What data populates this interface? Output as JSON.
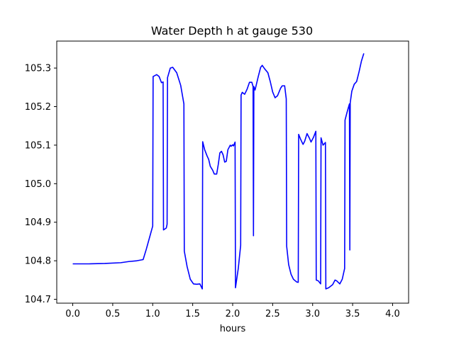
{
  "chart_data": {
    "type": "line",
    "title": "Water Depth h at gauge 530",
    "xlabel": "hours",
    "ylabel": "",
    "xlim": [
      -0.2,
      4.2
    ],
    "ylim": [
      104.69,
      105.37
    ],
    "xticks": [
      0.0,
      0.5,
      1.0,
      1.5,
      2.0,
      2.5,
      3.0,
      3.5,
      4.0
    ],
    "xtick_labels": [
      "0.0",
      "0.5",
      "1.0",
      "1.5",
      "2.0",
      "2.5",
      "3.0",
      "3.5",
      "4.0"
    ],
    "yticks": [
      104.7,
      104.8,
      104.9,
      105.0,
      105.1,
      105.2,
      105.3
    ],
    "ytick_labels": [
      "104.7",
      "104.8",
      "104.9",
      "105.0",
      "105.1",
      "105.2",
      "105.3"
    ],
    "grid": false,
    "series": [
      {
        "name": "",
        "color": "#0000ff",
        "points": [
          [
            0.0,
            104.792
          ],
          [
            0.2,
            104.792
          ],
          [
            0.4,
            104.793
          ],
          [
            0.6,
            104.795
          ],
          [
            0.7,
            104.798
          ],
          [
            0.8,
            104.8
          ],
          [
            0.88,
            104.803
          ],
          [
            0.92,
            104.83
          ],
          [
            0.96,
            104.86
          ],
          [
            1.0,
            104.89
          ],
          [
            1.005,
            105.278
          ],
          [
            1.05,
            105.283
          ],
          [
            1.08,
            105.278
          ],
          [
            1.11,
            105.262
          ],
          [
            1.13,
            105.264
          ],
          [
            1.135,
            104.88
          ],
          [
            1.17,
            104.885
          ],
          [
            1.18,
            104.895
          ],
          [
            1.185,
            105.275
          ],
          [
            1.22,
            105.3
          ],
          [
            1.25,
            105.302
          ],
          [
            1.3,
            105.288
          ],
          [
            1.35,
            105.255
          ],
          [
            1.39,
            105.207
          ],
          [
            1.395,
            104.825
          ],
          [
            1.43,
            104.785
          ],
          [
            1.47,
            104.752
          ],
          [
            1.51,
            104.74
          ],
          [
            1.55,
            104.739
          ],
          [
            1.59,
            104.74
          ],
          [
            1.62,
            104.727
          ],
          [
            1.625,
            105.109
          ],
          [
            1.65,
            105.088
          ],
          [
            1.68,
            105.072
          ],
          [
            1.7,
            105.063
          ],
          [
            1.72,
            105.045
          ],
          [
            1.75,
            105.035
          ],
          [
            1.77,
            105.025
          ],
          [
            1.8,
            105.025
          ],
          [
            1.82,
            105.05
          ],
          [
            1.84,
            105.08
          ],
          [
            1.86,
            105.084
          ],
          [
            1.88,
            105.075
          ],
          [
            1.9,
            105.056
          ],
          [
            1.92,
            105.058
          ],
          [
            1.94,
            105.088
          ],
          [
            1.97,
            105.1
          ],
          [
            1.98,
            105.097
          ],
          [
            2.0,
            105.101
          ],
          [
            2.01,
            105.098
          ],
          [
            2.03,
            105.108
          ],
          [
            2.035,
            104.73
          ],
          [
            2.07,
            104.78
          ],
          [
            2.1,
            104.84
          ],
          [
            2.105,
            105.23
          ],
          [
            2.12,
            105.237
          ],
          [
            2.15,
            105.232
          ],
          [
            2.18,
            105.245
          ],
          [
            2.21,
            105.263
          ],
          [
            2.24,
            105.263
          ],
          [
            2.255,
            105.252
          ],
          [
            2.26,
            104.865
          ],
          [
            2.265,
            105.252
          ],
          [
            2.28,
            105.243
          ],
          [
            2.32,
            105.278
          ],
          [
            2.35,
            105.302
          ],
          [
            2.37,
            105.307
          ],
          [
            2.4,
            105.298
          ],
          [
            2.44,
            105.288
          ],
          [
            2.47,
            105.265
          ],
          [
            2.5,
            105.238
          ],
          [
            2.53,
            105.223
          ],
          [
            2.56,
            105.228
          ],
          [
            2.6,
            105.248
          ],
          [
            2.62,
            105.254
          ],
          [
            2.65,
            105.254
          ],
          [
            2.67,
            105.22
          ],
          [
            2.675,
            104.838
          ],
          [
            2.7,
            104.79
          ],
          [
            2.73,
            104.765
          ],
          [
            2.76,
            104.752
          ],
          [
            2.8,
            104.745
          ],
          [
            2.82,
            104.744
          ],
          [
            2.825,
            105.128
          ],
          [
            2.85,
            105.115
          ],
          [
            2.88,
            105.102
          ],
          [
            2.9,
            105.11
          ],
          [
            2.93,
            105.13
          ],
          [
            2.96,
            105.118
          ],
          [
            2.98,
            105.108
          ],
          [
            3.01,
            105.12
          ],
          [
            3.04,
            105.136
          ],
          [
            3.045,
            104.75
          ],
          [
            3.07,
            104.748
          ],
          [
            3.1,
            104.74
          ],
          [
            3.105,
            105.119
          ],
          [
            3.13,
            105.1
          ],
          [
            3.16,
            105.107
          ],
          [
            3.165,
            104.727
          ],
          [
            3.2,
            104.73
          ],
          [
            3.25,
            104.738
          ],
          [
            3.28,
            104.75
          ],
          [
            3.3,
            104.748
          ],
          [
            3.34,
            104.74
          ],
          [
            3.37,
            104.752
          ],
          [
            3.4,
            104.78
          ],
          [
            3.405,
            105.165
          ],
          [
            3.43,
            105.185
          ],
          [
            3.46,
            105.207
          ],
          [
            3.465,
            104.828
          ],
          [
            3.47,
            105.21
          ],
          [
            3.49,
            105.24
          ],
          [
            3.52,
            105.258
          ],
          [
            3.55,
            105.265
          ],
          [
            3.58,
            105.29
          ],
          [
            3.61,
            105.318
          ],
          [
            3.64,
            105.338
          ]
        ]
      }
    ]
  }
}
